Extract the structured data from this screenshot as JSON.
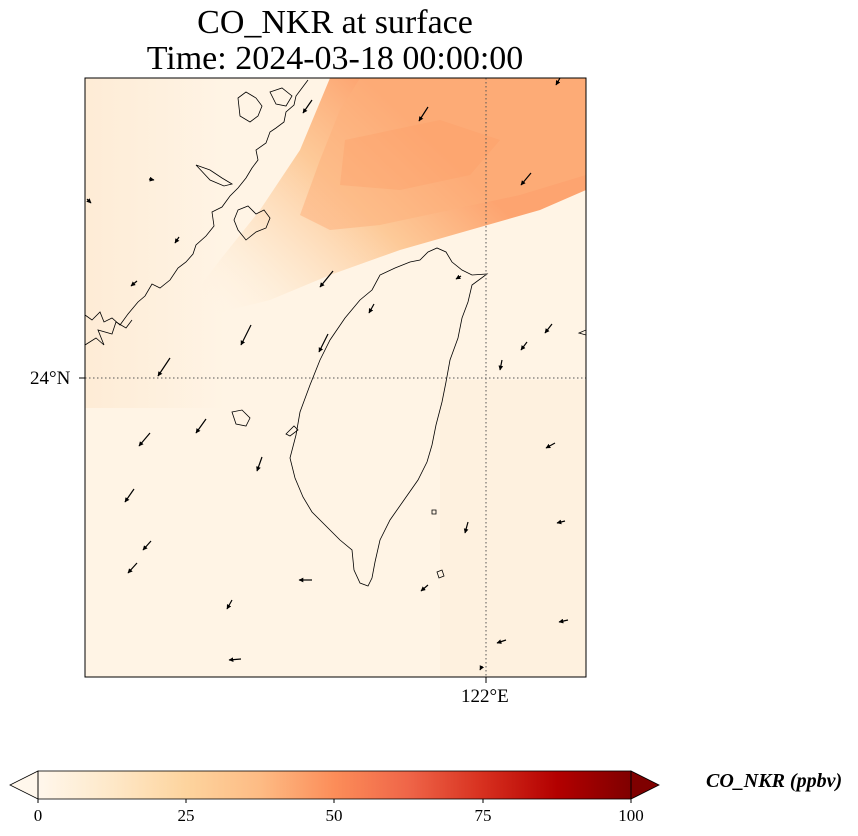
{
  "title": {
    "line1": "CO_NKR at surface",
    "line2": "Time: 2024-03-18 00:00:00"
  },
  "gridlines": {
    "latitude_label": "24°N",
    "longitude_label": "122°E",
    "style": "dotted"
  },
  "colorbar": {
    "label": "CO_NKR (ppbv)",
    "ticks": [
      "0",
      "25",
      "50",
      "75",
      "100"
    ],
    "min": 0,
    "max": 100,
    "extend": "both",
    "colormap": "OrRd",
    "colors": [
      "#fff7ec",
      "#fee8c8",
      "#fdd49e",
      "#fdbb84",
      "#fc8d59",
      "#ef6548",
      "#d7301f",
      "#b30000",
      "#7f0000"
    ]
  },
  "map": {
    "region": "Taiwan and southeast China coast",
    "field_description": "low background CO_NKR with elevated plume (~30-35 ppbv) over northern Taiwan Strait / East China Sea",
    "wind_vectors": "arrows from north-northeast"
  }
}
